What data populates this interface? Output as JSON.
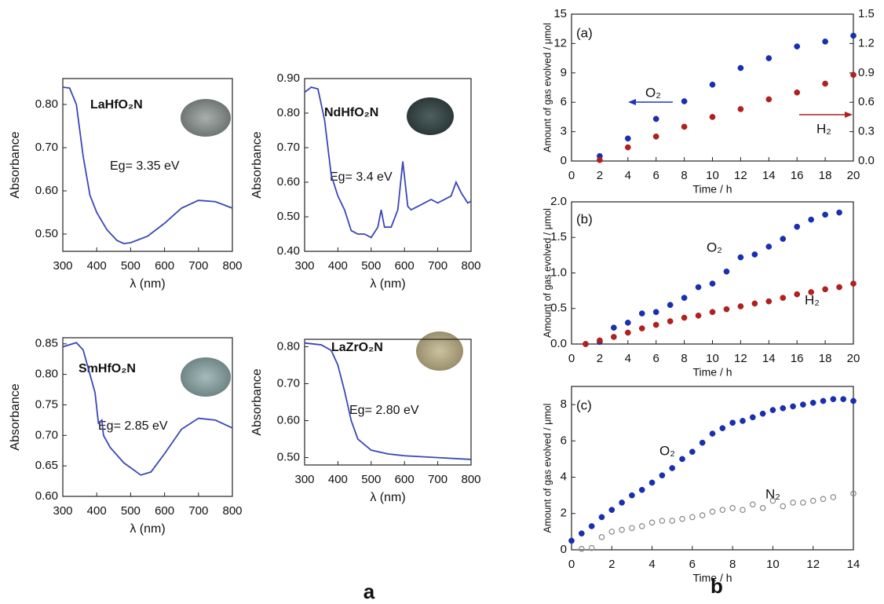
{
  "chart_data": [
    {
      "type": "line",
      "xlabel": "λ (nm)",
      "ylabel": "Absorbance",
      "annotations": [
        {
          "text": "LaHfO₂N",
          "color": "#1e2a9c"
        },
        {
          "text": "Eg= 3.35 eV",
          "color": "#111111"
        }
      ],
      "xlim": [
        300,
        800
      ],
      "xticks": [
        300,
        400,
        500,
        600,
        700,
        800
      ],
      "ylim": [
        0.46,
        0.86
      ],
      "yticks": [
        {
          "value": 0.5,
          "label": "0.50"
        },
        {
          "value": 0.6,
          "label": "0.60"
        },
        {
          "value": 0.7,
          "label": "0.70"
        },
        {
          "value": 0.8,
          "label": "0.80"
        }
      ],
      "series": [
        {
          "color": "#3b46b8",
          "x": [
            300,
            320,
            340,
            360,
            380,
            400,
            430,
            460,
            480,
            500,
            550,
            600,
            650,
            700,
            750,
            800
          ],
          "values": [
            0.84,
            0.838,
            0.8,
            0.68,
            0.59,
            0.55,
            0.51,
            0.485,
            0.478,
            0.48,
            0.495,
            0.525,
            0.56,
            0.578,
            0.575,
            0.56
          ]
        }
      ]
    },
    {
      "type": "line",
      "xlabel": "λ (nm)",
      "ylabel": "Absorbance",
      "annotations": [
        {
          "text": "NdHfO₂N",
          "color": "#1e2a9c"
        },
        {
          "text": "Eg= 3.4 eV",
          "color": "#111111"
        }
      ],
      "xlim": [
        300,
        800
      ],
      "xticks": [
        300,
        400,
        500,
        600,
        700,
        800
      ],
      "ylim": [
        0.4,
        0.9
      ],
      "yticks": [
        {
          "value": 0.4,
          "label": "0.40"
        },
        {
          "value": 0.5,
          "label": "0.50"
        },
        {
          "value": 0.6,
          "label": "0.60"
        },
        {
          "value": 0.7,
          "label": "0.70"
        },
        {
          "value": 0.8,
          "label": "0.80"
        },
        {
          "value": 0.9,
          "label": "0.90"
        }
      ],
      "series": [
        {
          "color": "#3b46b8",
          "x": [
            300,
            320,
            340,
            360,
            380,
            400,
            420,
            440,
            460,
            480,
            500,
            520,
            530,
            540,
            560,
            580,
            595,
            610,
            620,
            640,
            680,
            700,
            740,
            755,
            770,
            790,
            800
          ],
          "values": [
            0.86,
            0.875,
            0.87,
            0.78,
            0.62,
            0.56,
            0.52,
            0.46,
            0.45,
            0.45,
            0.44,
            0.47,
            0.52,
            0.47,
            0.47,
            0.52,
            0.66,
            0.53,
            0.52,
            0.53,
            0.55,
            0.54,
            0.56,
            0.6,
            0.57,
            0.54,
            0.545
          ]
        }
      ]
    },
    {
      "type": "line",
      "xlabel": "λ (nm)",
      "ylabel": "Absorbance",
      "annotations": [
        {
          "text": "SmHfO₂N",
          "color": "#1e2a9c"
        },
        {
          "text": "Eg= 2.85 eV",
          "color": "#111111"
        }
      ],
      "xlim": [
        300,
        800
      ],
      "xticks": [
        300,
        400,
        500,
        600,
        700,
        800
      ],
      "ylim": [
        0.6,
        0.86
      ],
      "yticks": [
        {
          "value": 0.6,
          "label": "0.60"
        },
        {
          "value": 0.65,
          "label": "0.65"
        },
        {
          "value": 0.7,
          "label": "0.70"
        },
        {
          "value": 0.75,
          "label": "0.75"
        },
        {
          "value": 0.8,
          "label": "0.80"
        },
        {
          "value": 0.85,
          "label": "0.85"
        }
      ],
      "series": [
        {
          "color": "#3b46b8",
          "x": [
            300,
            340,
            360,
            380,
            395,
            405,
            415,
            420,
            440,
            480,
            530,
            560,
            600,
            650,
            700,
            750,
            800
          ],
          "values": [
            0.845,
            0.852,
            0.84,
            0.8,
            0.77,
            0.72,
            0.725,
            0.7,
            0.68,
            0.655,
            0.635,
            0.64,
            0.67,
            0.71,
            0.728,
            0.725,
            0.712
          ]
        }
      ]
    },
    {
      "type": "line",
      "xlabel": "λ (nm)",
      "ylabel": "Absorbance",
      "annotations": [
        {
          "text": "LaZrO₂N",
          "color": "#1e2a9c"
        },
        {
          "text": "Eg= 2.80 eV",
          "color": "#111111"
        }
      ],
      "xlim": [
        300,
        800
      ],
      "xticks": [
        300,
        400,
        500,
        600,
        700,
        800
      ],
      "ylim": [
        0.48,
        0.82
      ],
      "yticks": [
        {
          "value": 0.5,
          "label": "0.50"
        },
        {
          "value": 0.6,
          "label": "0.60"
        },
        {
          "value": 0.7,
          "label": "0.70"
        },
        {
          "value": 0.8,
          "label": "0.80"
        }
      ],
      "series": [
        {
          "color": "#3b46b8",
          "x": [
            300,
            350,
            380,
            400,
            420,
            440,
            460,
            500,
            550,
            600,
            700,
            800
          ],
          "values": [
            0.81,
            0.805,
            0.79,
            0.75,
            0.68,
            0.6,
            0.55,
            0.52,
            0.51,
            0.505,
            0.5,
            0.495
          ]
        }
      ]
    },
    {
      "type": "scatter",
      "xlabel": "Time / h",
      "ylabel": "Amount of gas evolved / μmol",
      "annotations": [
        {
          "text": "(a)",
          "color": "#111111"
        },
        {
          "text": "O₂",
          "color": "#2233bb"
        },
        {
          "text": "H₂",
          "color": "#b0201e"
        }
      ],
      "xlim": [
        0,
        20
      ],
      "xticks": [
        0,
        2,
        4,
        6,
        8,
        10,
        12,
        14,
        16,
        18,
        20
      ],
      "ylim": [
        0,
        15
      ],
      "yticks": [
        0,
        3,
        6,
        9,
        12,
        15
      ],
      "y2lim": [
        0,
        1.5
      ],
      "y2ticks": [
        {
          "value": 0,
          "label": "0.0"
        },
        0.3,
        0.6,
        0.9,
        1.2,
        1.5
      ],
      "series": [
        {
          "color": "#1a2fb0",
          "marker": "filled",
          "x": [
            2,
            4,
            6,
            8,
            10,
            12,
            14,
            16,
            18,
            20
          ],
          "values": [
            0.5,
            2.3,
            4.3,
            6.1,
            7.8,
            9.5,
            10.5,
            11.7,
            12.2,
            12.8
          ]
        },
        {
          "color": "#b0201e",
          "marker": "filled",
          "axis": "y2",
          "x": [
            2,
            4,
            6,
            8,
            10,
            12,
            14,
            16,
            18,
            20
          ],
          "values": [
            0.01,
            0.14,
            0.25,
            0.35,
            0.45,
            0.53,
            0.63,
            0.7,
            0.79,
            0.88
          ]
        }
      ]
    },
    {
      "type": "scatter",
      "xlabel": "Time / h",
      "ylabel": "Amount of gas evolved / μmol",
      "annotations": [
        {
          "text": "(b)",
          "color": "#111111"
        },
        {
          "text": "O₂",
          "color": "#2233bb"
        },
        {
          "text": "H₂",
          "color": "#b0201e"
        }
      ],
      "xlim": [
        0,
        20
      ],
      "xticks": [
        0,
        2,
        4,
        6,
        8,
        10,
        12,
        14,
        16,
        18,
        20
      ],
      "ylim": [
        0,
        2
      ],
      "yticks": [
        {
          "value": 0,
          "label": "0.0"
        },
        0.5,
        {
          "value": 1,
          "label": "1.0"
        },
        1.5,
        {
          "value": 2,
          "label": "2.0"
        }
      ],
      "series": [
        {
          "color": "#1a2fb0",
          "marker": "filled",
          "x": [
            1,
            2,
            3,
            4,
            5,
            6,
            7,
            8,
            9,
            10,
            11,
            12,
            13,
            14,
            15,
            16,
            17,
            18,
            19
          ],
          "values": [
            0,
            0.03,
            0.23,
            0.3,
            0.43,
            0.45,
            0.55,
            0.65,
            0.8,
            0.85,
            1.02,
            1.22,
            1.26,
            1.37,
            1.48,
            1.65,
            1.75,
            1.82,
            1.85
          ]
        },
        {
          "color": "#b0201e",
          "marker": "filled",
          "x": [
            1,
            2,
            3,
            4,
            5,
            6,
            7,
            8,
            9,
            10,
            11,
            12,
            13,
            14,
            15,
            16,
            17,
            18,
            19,
            20
          ],
          "values": [
            0,
            0.05,
            0.1,
            0.16,
            0.22,
            0.27,
            0.32,
            0.37,
            0.4,
            0.45,
            0.49,
            0.53,
            0.57,
            0.6,
            0.65,
            0.7,
            0.73,
            0.77,
            0.8,
            0.85
          ]
        }
      ]
    },
    {
      "type": "scatter",
      "xlabel": "Time / h",
      "ylabel": "Amount of gas evolved / μmol",
      "annotations": [
        {
          "text": "(c)",
          "color": "#111111"
        },
        {
          "text": "O₂",
          "color": "#2233bb"
        },
        {
          "text": "N₂",
          "color": "#222222"
        }
      ],
      "xlim": [
        0,
        14
      ],
      "xticks": [
        0,
        2,
        4,
        6,
        8,
        10,
        12,
        14
      ],
      "ylim": [
        0,
        9
      ],
      "yticks": [
        0,
        2,
        4,
        6,
        8
      ],
      "series": [
        {
          "color": "#1a2fb0",
          "marker": "filled",
          "x": [
            0,
            0.5,
            1,
            1.5,
            2,
            2.5,
            3,
            3.5,
            4,
            4.5,
            5,
            5.5,
            6,
            6.5,
            7,
            7.5,
            8,
            8.5,
            9,
            9.5,
            10,
            10.5,
            11,
            11.5,
            12,
            12.5,
            13,
            13.5,
            14
          ],
          "values": [
            0.5,
            0.9,
            1.3,
            1.8,
            2.2,
            2.6,
            3,
            3.3,
            3.7,
            4.1,
            4.5,
            5,
            5.4,
            5.9,
            6.4,
            6.7,
            7,
            7.1,
            7.3,
            7.5,
            7.7,
            7.8,
            7.9,
            8,
            8.1,
            8.2,
            8.3,
            8.3,
            8.2
          ]
        },
        {
          "color": "#888888",
          "marker": "open",
          "x": [
            0.5,
            1,
            1.5,
            2,
            2.5,
            3,
            3.5,
            4,
            4.5,
            5,
            5.5,
            6,
            6.5,
            7,
            7.5,
            8,
            8.5,
            9,
            9.5,
            10,
            10.5,
            11,
            11.5,
            12,
            12.5,
            13,
            14
          ],
          "values": [
            0.05,
            0.1,
            0.7,
            1,
            1.1,
            1.2,
            1.3,
            1.5,
            1.6,
            1.6,
            1.7,
            1.8,
            1.9,
            2.1,
            2.2,
            2.3,
            2.2,
            2.5,
            2.3,
            2.7,
            2.4,
            2.6,
            2.6,
            2.7,
            2.8,
            2.9,
            3.1
          ]
        }
      ]
    }
  ],
  "panel_labels": [
    "a",
    "b"
  ]
}
